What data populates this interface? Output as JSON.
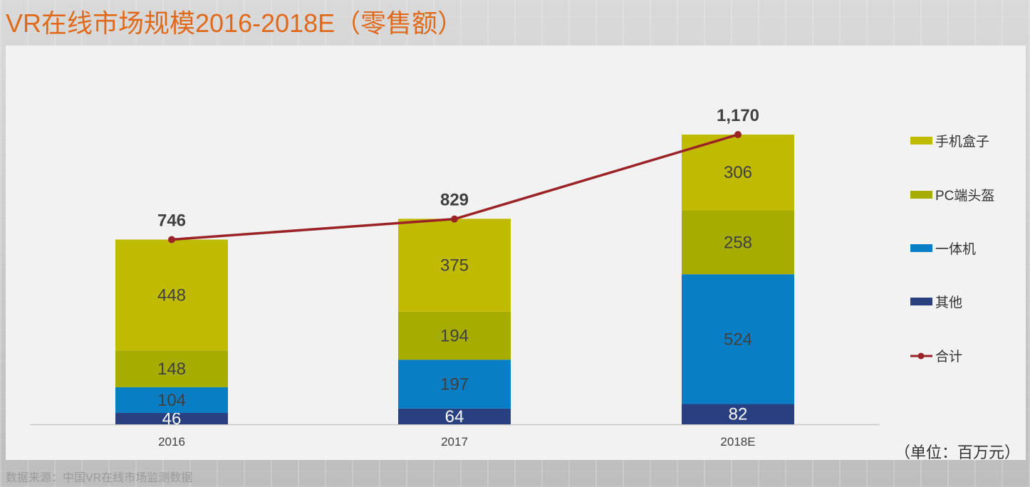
{
  "title": "VR在线市场规模2016-2018E（零售额）",
  "unit_note": "（单位：百万元）",
  "source": "数据来源：中国VR在线市场监测数据",
  "colors": {
    "title": "#e06a1b",
    "手机盒子": "#c0ba00",
    "PC端头盔": "#a6ad00",
    "一体机": "#0a7ec4",
    "其他": "#283f80",
    "合计": "#9b2226"
  },
  "chart_data": {
    "type": "bar",
    "stacked": true,
    "categories": [
      "2016",
      "2017",
      "2018E"
    ],
    "series": [
      {
        "name": "其他",
        "values": [
          46,
          64,
          82
        ]
      },
      {
        "name": "一体机",
        "values": [
          104,
          197,
          524
        ]
      },
      {
        "name": "PC端头盔",
        "values": [
          148,
          194,
          258
        ]
      },
      {
        "name": "手机盒子",
        "values": [
          448,
          375,
          306
        ]
      }
    ],
    "line_series": {
      "name": "合计",
      "type": "line",
      "values": [
        746,
        829,
        1170
      ],
      "labels": [
        "746",
        "829",
        "1,170"
      ]
    },
    "legend_order": [
      "手机盒子",
      "PC端头盔",
      "一体机",
      "其他",
      "合计"
    ],
    "legend_position": "right",
    "grid": false,
    "ylim": [
      0,
      1170
    ]
  }
}
